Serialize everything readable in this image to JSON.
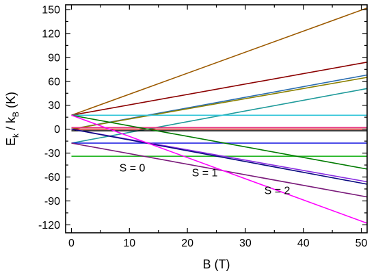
{
  "chart_data": {
    "type": "line",
    "xlabel": "B (T)",
    "ylabel": {
      "main": "E",
      "sub1": "k",
      "mid": " / k",
      "sub2": "B",
      "tail": " (K)"
    },
    "xlim": [
      -1,
      51
    ],
    "ylim": [
      -130,
      156
    ],
    "x_ticks": [
      0,
      10,
      20,
      30,
      40,
      50
    ],
    "y_ticks": [
      150,
      120,
      90,
      60,
      30,
      0,
      -30,
      -60,
      -90,
      -120
    ],
    "grid": false,
    "legend": "none",
    "annotations": [
      {
        "text": "S = 0",
        "x": 10.5,
        "y": -49
      },
      {
        "text": "S = 1",
        "x": 23.0,
        "y": -55
      },
      {
        "text": "S = 2",
        "x": 35.5,
        "y": -77
      }
    ],
    "series": [
      {
        "color": "#9c5a00",
        "x": [
          0,
          51
        ],
        "y": [
          17.5,
          152
        ]
      },
      {
        "color": "#8b0000",
        "x": [
          0,
          51
        ],
        "y": [
          17.5,
          84
        ]
      },
      {
        "color": "#2a6db0",
        "x": [
          0,
          51
        ],
        "y": [
          0,
          68
        ]
      },
      {
        "color": "#8b8000",
        "x": [
          0,
          51
        ],
        "y": [
          0,
          65
        ]
      },
      {
        "color": "#1e9a9a",
        "x": [
          0,
          51
        ],
        "y": [
          -17.5,
          51
        ]
      },
      {
        "color": "#2ec4d8",
        "x": [
          0,
          51
        ],
        "y": [
          17.5,
          17.5
        ]
      },
      {
        "color": "#e8327f",
        "x": [
          0,
          51
        ],
        "y": [
          2,
          2
        ]
      },
      {
        "color": "#c00000",
        "x": [
          0,
          51
        ],
        "y": [
          0,
          0
        ]
      },
      {
        "color": "#000000",
        "x": [
          0,
          51
        ],
        "y": [
          -2,
          -2
        ]
      },
      {
        "color": "#1010e0",
        "x": [
          0,
          51
        ],
        "y": [
          -17.5,
          -17.5
        ]
      },
      {
        "color": "#22b522",
        "x": [
          0,
          51
        ],
        "y": [
          -34,
          -34
        ]
      },
      {
        "color": "#007a00",
        "x": [
          0,
          51
        ],
        "y": [
          17.5,
          -50
        ]
      },
      {
        "color": "#8a2be2",
        "x": [
          0,
          51
        ],
        "y": [
          0,
          -66
        ]
      },
      {
        "color": "#0a0a80",
        "x": [
          0,
          51
        ],
        "y": [
          0,
          -69
        ]
      },
      {
        "color": "#7a1a7a",
        "x": [
          0,
          51
        ],
        "y": [
          -17.5,
          -85
        ]
      },
      {
        "color": "#ff00ff",
        "x": [
          0,
          51
        ],
        "y": [
          17.5,
          -118
        ]
      }
    ]
  }
}
